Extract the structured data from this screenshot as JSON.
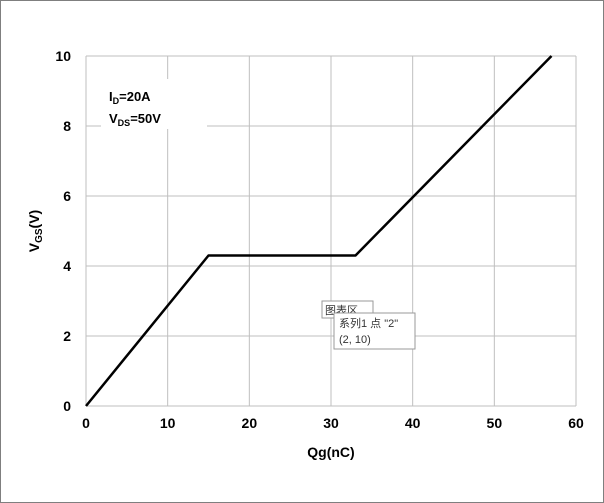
{
  "chart_data": {
    "type": "line",
    "xlabel": "Qg(nC)",
    "ylabel": {
      "main": "V",
      "sub": "GS",
      "unit": "(V)"
    },
    "xlim": [
      0,
      60
    ],
    "ylim": [
      0,
      10
    ],
    "xticks": [
      0,
      10,
      20,
      30,
      40,
      50,
      60
    ],
    "yticks": [
      0,
      2,
      4,
      6,
      8,
      10
    ],
    "grid": true,
    "series": [
      {
        "x": [
          0,
          15,
          33,
          57
        ],
        "y": [
          0,
          4.3,
          4.3,
          10
        ],
        "color": "#000000"
      }
    ],
    "annotations": [
      {
        "main": "I",
        "sub": "D",
        "rest": "=20A"
      },
      {
        "main": "V",
        "sub": "DS",
        "rest": "=50V"
      }
    ]
  },
  "tooltip": {
    "area_label": "图表区",
    "series_point": "系列1 点 \"2\"",
    "coords": "(2, 10)"
  }
}
